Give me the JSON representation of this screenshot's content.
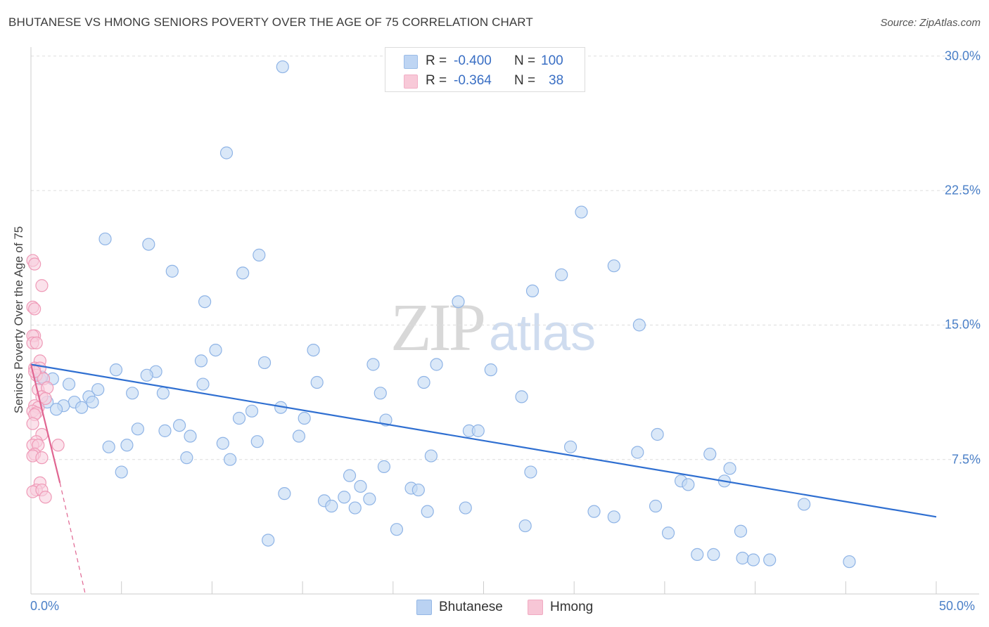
{
  "header": {
    "title": "BHUTANESE VS HMONG SENIORS POVERTY OVER THE AGE OF 75 CORRELATION CHART",
    "source": "Source: ZipAtlas.com"
  },
  "watermark": {
    "zip": "ZIP",
    "atlas": "atlas"
  },
  "stats": {
    "rows": [
      {
        "r_label": "R =",
        "r_value": "-0.400",
        "n_label": "N =",
        "n_value": "100",
        "color": "#a9c8f0"
      },
      {
        "r_label": "R =",
        "r_value": "-0.364",
        "n_label": "N =",
        "n_value": "38",
        "color": "#f6b8cc"
      }
    ]
  },
  "legend": {
    "items": [
      {
        "label": "Bhutanese",
        "color": "#a9c8f0"
      },
      {
        "label": "Hmong",
        "color": "#f6b8cc"
      }
    ]
  },
  "chart_data": {
    "type": "scatter",
    "title": "BHUTANESE VS HMONG SENIORS POVERTY OVER THE AGE OF 75 CORRELATION CHART",
    "xlabel": "",
    "ylabel": "Seniors Poverty Over the Age of 75",
    "xlim": [
      0,
      50
    ],
    "ylim": [
      0,
      30.5
    ],
    "x_tick_labels": [
      "0.0%",
      "50.0%"
    ],
    "y_ticks": [
      7.5,
      15.0,
      22.5,
      30.0
    ],
    "y_tick_labels": [
      "7.5%",
      "15.0%",
      "22.5%",
      "30.0%"
    ],
    "grid": "horizontal dashed",
    "legend_position": "bottom-center",
    "colors": {
      "bhutanese_fill": "#c6dbf5",
      "bhutanese_stroke": "#8fb4e6",
      "bhutanese_line": "#2f6fd1",
      "hmong_fill": "#f9cfdd",
      "hmong_stroke": "#ef9ab7",
      "hmong_line": "#e06591"
    },
    "series": [
      {
        "name": "Bhutanese",
        "trend": {
          "x": [
            0,
            50
          ],
          "y": [
            12.8,
            4.3
          ]
        },
        "points": [
          [
            13.9,
            29.4
          ],
          [
            10.8,
            24.6
          ],
          [
            30.4,
            21.3
          ],
          [
            4.1,
            19.8
          ],
          [
            6.5,
            19.5
          ],
          [
            12.6,
            18.9
          ],
          [
            7.8,
            18.0
          ],
          [
            11.7,
            17.9
          ],
          [
            32.2,
            18.3
          ],
          [
            29.3,
            17.8
          ],
          [
            27.7,
            16.9
          ],
          [
            9.6,
            16.3
          ],
          [
            23.6,
            16.3
          ],
          [
            33.6,
            15.0
          ],
          [
            10.2,
            13.6
          ],
          [
            15.6,
            13.6
          ],
          [
            9.4,
            13.0
          ],
          [
            12.9,
            12.9
          ],
          [
            18.9,
            12.8
          ],
          [
            22.4,
            12.8
          ],
          [
            25.4,
            12.5
          ],
          [
            4.7,
            12.5
          ],
          [
            6.9,
            12.4
          ],
          [
            6.4,
            12.2
          ],
          [
            0.5,
            12.0
          ],
          [
            1.2,
            12.0
          ],
          [
            2.1,
            11.7
          ],
          [
            15.8,
            11.8
          ],
          [
            21.7,
            11.8
          ],
          [
            9.5,
            11.7
          ],
          [
            3.7,
            11.4
          ],
          [
            7.3,
            11.2
          ],
          [
            5.6,
            11.2
          ],
          [
            19.3,
            11.2
          ],
          [
            27.1,
            11.0
          ],
          [
            3.2,
            11.0
          ],
          [
            0.9,
            10.7
          ],
          [
            2.4,
            10.7
          ],
          [
            3.4,
            10.7
          ],
          [
            1.8,
            10.5
          ],
          [
            2.8,
            10.4
          ],
          [
            1.4,
            10.3
          ],
          [
            13.8,
            10.4
          ],
          [
            12.2,
            10.2
          ],
          [
            11.5,
            9.8
          ],
          [
            15.1,
            9.8
          ],
          [
            19.6,
            9.7
          ],
          [
            8.2,
            9.4
          ],
          [
            5.9,
            9.2
          ],
          [
            7.4,
            9.1
          ],
          [
            24.2,
            9.1
          ],
          [
            24.7,
            9.1
          ],
          [
            34.6,
            8.9
          ],
          [
            8.8,
            8.8
          ],
          [
            14.8,
            8.8
          ],
          [
            12.5,
            8.5
          ],
          [
            10.6,
            8.4
          ],
          [
            4.3,
            8.2
          ],
          [
            5.3,
            8.3
          ],
          [
            29.8,
            8.2
          ],
          [
            33.5,
            7.9
          ],
          [
            37.5,
            7.8
          ],
          [
            8.6,
            7.6
          ],
          [
            11.0,
            7.5
          ],
          [
            22.1,
            7.7
          ],
          [
            19.5,
            7.1
          ],
          [
            38.6,
            7.0
          ],
          [
            5.0,
            6.8
          ],
          [
            17.6,
            6.6
          ],
          [
            27.6,
            6.8
          ],
          [
            35.9,
            6.3
          ],
          [
            36.3,
            6.1
          ],
          [
            38.3,
            6.3
          ],
          [
            18.2,
            6.0
          ],
          [
            21.0,
            5.9
          ],
          [
            21.4,
            5.8
          ],
          [
            14.0,
            5.6
          ],
          [
            16.2,
            5.2
          ],
          [
            17.3,
            5.4
          ],
          [
            18.7,
            5.3
          ],
          [
            16.6,
            4.9
          ],
          [
            17.9,
            4.8
          ],
          [
            21.9,
            4.6
          ],
          [
            24.0,
            4.8
          ],
          [
            34.5,
            4.9
          ],
          [
            31.1,
            4.6
          ],
          [
            42.7,
            5.0
          ],
          [
            32.2,
            4.3
          ],
          [
            27.3,
            3.8
          ],
          [
            20.2,
            3.6
          ],
          [
            35.2,
            3.4
          ],
          [
            39.2,
            3.5
          ],
          [
            13.1,
            3.0
          ],
          [
            36.8,
            2.2
          ],
          [
            37.7,
            2.2
          ],
          [
            39.3,
            2.0
          ],
          [
            39.9,
            1.9
          ],
          [
            40.8,
            1.9
          ],
          [
            45.2,
            1.8
          ],
          [
            0.6,
            12.1
          ]
        ]
      },
      {
        "name": "Hmong",
        "trend": {
          "x": [
            0,
            1.6
          ],
          "y": [
            12.8,
            6.2
          ]
        },
        "trend_extension": {
          "x": [
            1.6,
            3.0
          ],
          "y": [
            6.2,
            0.0
          ]
        },
        "points": [
          [
            0.1,
            18.6
          ],
          [
            0.2,
            18.4
          ],
          [
            0.6,
            17.2
          ],
          [
            0.1,
            16.0
          ],
          [
            0.2,
            15.9
          ],
          [
            0.2,
            14.4
          ],
          [
            0.1,
            14.4
          ],
          [
            0.1,
            14.0
          ],
          [
            0.3,
            14.0
          ],
          [
            0.5,
            13.0
          ],
          [
            0.2,
            12.6
          ],
          [
            0.5,
            12.6
          ],
          [
            0.3,
            12.2
          ],
          [
            0.7,
            12.0
          ],
          [
            0.2,
            12.4
          ],
          [
            0.4,
            11.4
          ],
          [
            0.9,
            11.5
          ],
          [
            0.6,
            11.0
          ],
          [
            0.8,
            10.9
          ],
          [
            0.2,
            10.5
          ],
          [
            0.4,
            10.4
          ],
          [
            0.1,
            10.2
          ],
          [
            0.3,
            10.1
          ],
          [
            0.2,
            10.0
          ],
          [
            0.1,
            9.5
          ],
          [
            0.6,
            8.9
          ],
          [
            0.3,
            8.5
          ],
          [
            0.1,
            8.3
          ],
          [
            0.4,
            8.3
          ],
          [
            1.5,
            8.3
          ],
          [
            0.2,
            7.8
          ],
          [
            0.1,
            7.7
          ],
          [
            0.6,
            7.6
          ],
          [
            0.5,
            6.2
          ],
          [
            0.3,
            5.8
          ],
          [
            0.1,
            5.7
          ],
          [
            0.6,
            5.8
          ],
          [
            0.8,
            5.4
          ]
        ]
      }
    ]
  }
}
